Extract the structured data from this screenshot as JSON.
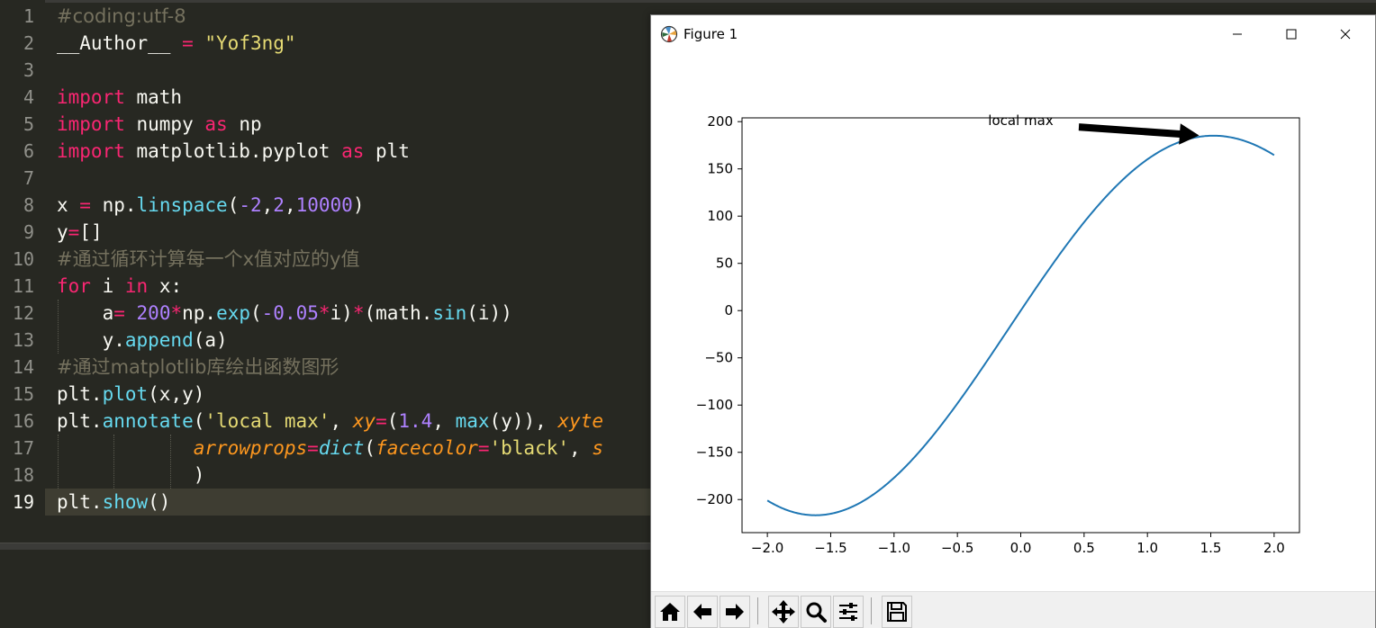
{
  "editor": {
    "line_numbers": [
      "1",
      "2",
      "3",
      "4",
      "5",
      "6",
      "7",
      "8",
      "9",
      "10",
      "11",
      "12",
      "13",
      "14",
      "15",
      "16",
      "17",
      "18",
      "19"
    ],
    "lines": [
      [
        {
          "t": "#coding:utf-8",
          "c": "cmt"
        }
      ],
      [
        {
          "t": "__Author__ ",
          "c": ""
        },
        {
          "t": "=",
          "c": "kw"
        },
        {
          "t": " ",
          "c": ""
        },
        {
          "t": "\"Yof3ng\"",
          "c": "str"
        }
      ],
      [],
      [
        {
          "t": "import",
          "c": "kw"
        },
        {
          "t": " math",
          "c": ""
        }
      ],
      [
        {
          "t": "import",
          "c": "kw"
        },
        {
          "t": " numpy ",
          "c": ""
        },
        {
          "t": "as",
          "c": "kw"
        },
        {
          "t": " np",
          "c": ""
        }
      ],
      [
        {
          "t": "import",
          "c": "kw"
        },
        {
          "t": " matplotlib.pyplot ",
          "c": ""
        },
        {
          "t": "as",
          "c": "kw"
        },
        {
          "t": " plt",
          "c": ""
        }
      ],
      [],
      [
        {
          "t": "x ",
          "c": ""
        },
        {
          "t": "=",
          "c": "kw"
        },
        {
          "t": " np.",
          "c": ""
        },
        {
          "t": "linspace",
          "c": "fn"
        },
        {
          "t": "(",
          "c": ""
        },
        {
          "t": "-2",
          "c": "num"
        },
        {
          "t": ",",
          "c": ""
        },
        {
          "t": "2",
          "c": "num"
        },
        {
          "t": ",",
          "c": ""
        },
        {
          "t": "10000",
          "c": "num"
        },
        {
          "t": ")",
          "c": ""
        }
      ],
      [
        {
          "t": "y",
          "c": ""
        },
        {
          "t": "=",
          "c": "kw"
        },
        {
          "t": "[]",
          "c": ""
        }
      ],
      [
        {
          "t": "#通过循环计算每一个x值对应的y值",
          "c": "cmt"
        }
      ],
      [
        {
          "t": "for",
          "c": "kw"
        },
        {
          "t": " i ",
          "c": ""
        },
        {
          "t": "in",
          "c": "kw"
        },
        {
          "t": " x:",
          "c": ""
        }
      ],
      [
        {
          "t": "    a",
          "c": ""
        },
        {
          "t": "=",
          "c": "kw"
        },
        {
          "t": " ",
          "c": ""
        },
        {
          "t": "200",
          "c": "num"
        },
        {
          "t": "*",
          "c": "kw"
        },
        {
          "t": "np.",
          "c": ""
        },
        {
          "t": "exp",
          "c": "fn"
        },
        {
          "t": "(",
          "c": ""
        },
        {
          "t": "-0.05",
          "c": "num"
        },
        {
          "t": "*",
          "c": "kw"
        },
        {
          "t": "i)",
          "c": ""
        },
        {
          "t": "*",
          "c": "kw"
        },
        {
          "t": "(math.",
          "c": ""
        },
        {
          "t": "sin",
          "c": "fn"
        },
        {
          "t": "(i))",
          "c": ""
        }
      ],
      [
        {
          "t": "    y.",
          "c": ""
        },
        {
          "t": "append",
          "c": "fn"
        },
        {
          "t": "(a)",
          "c": ""
        }
      ],
      [
        {
          "t": "#通过matplotlib库绘出函数图形",
          "c": "cmt"
        }
      ],
      [
        {
          "t": "plt.",
          "c": ""
        },
        {
          "t": "plot",
          "c": "fn"
        },
        {
          "t": "(x,y)",
          "c": ""
        }
      ],
      [
        {
          "t": "plt.",
          "c": ""
        },
        {
          "t": "annotate",
          "c": "fn"
        },
        {
          "t": "(",
          "c": ""
        },
        {
          "t": "'local max'",
          "c": "str"
        },
        {
          "t": ", ",
          "c": ""
        },
        {
          "t": "xy",
          "c": "arg"
        },
        {
          "t": "=",
          "c": "kw"
        },
        {
          "t": "(",
          "c": ""
        },
        {
          "t": "1.4",
          "c": "num"
        },
        {
          "t": ", ",
          "c": ""
        },
        {
          "t": "max",
          "c": "fn"
        },
        {
          "t": "(y)), ",
          "c": ""
        },
        {
          "t": "xyte",
          "c": "arg"
        }
      ],
      [
        {
          "t": "            ",
          "c": ""
        },
        {
          "t": "arrowprops",
          "c": "arg"
        },
        {
          "t": "=",
          "c": "kw"
        },
        {
          "t": "dict",
          "c": "fn-it"
        },
        {
          "t": "(",
          "c": ""
        },
        {
          "t": "facecolor",
          "c": "arg"
        },
        {
          "t": "=",
          "c": "kw"
        },
        {
          "t": "'black'",
          "c": "str"
        },
        {
          "t": ", ",
          "c": ""
        },
        {
          "t": "s",
          "c": "arg"
        }
      ],
      [
        {
          "t": "            )",
          "c": ""
        }
      ],
      [
        {
          "t": "plt.",
          "c": ""
        },
        {
          "t": "show",
          "c": "fn"
        },
        {
          "t": "()",
          "c": ""
        }
      ]
    ],
    "active_line": 19
  },
  "figure": {
    "title": "Figure 1",
    "buttons": {
      "minimize": "minimize",
      "maximize": "maximize",
      "close": "close"
    },
    "toolbar": [
      "home-icon",
      "back-arrow-icon",
      "forward-arrow-icon",
      "pan-icon",
      "zoom-icon",
      "configure-subplots-icon",
      "save-icon"
    ]
  },
  "chart_data": {
    "type": "line",
    "function": "200*exp(-0.05*x)*sin(x)",
    "x_range": [
      -2,
      2
    ],
    "xlim": [
      -2.2,
      2.2
    ],
    "ylim": [
      -235,
      204
    ],
    "xticks": [
      "−2.0",
      "−1.5",
      "−1.0",
      "−0.5",
      "0.0",
      "0.5",
      "1.0",
      "1.5",
      "2.0"
    ],
    "xtick_values": [
      -2.0,
      -1.5,
      -1.0,
      -0.5,
      0.0,
      0.5,
      1.0,
      1.5,
      2.0
    ],
    "yticks": [
      "200",
      "150",
      "100",
      "50",
      "0",
      "−50",
      "−100",
      "−150",
      "−200"
    ],
    "ytick_values": [
      200,
      150,
      100,
      50,
      0,
      -50,
      -100,
      -150,
      -200
    ],
    "series": [
      {
        "color": "#1f77b4"
      }
    ],
    "annotation": {
      "text": "local max",
      "xy": [
        1.4,
        185.5
      ],
      "xytext": [
        0,
        200
      ],
      "arrow_color": "#000000"
    }
  }
}
